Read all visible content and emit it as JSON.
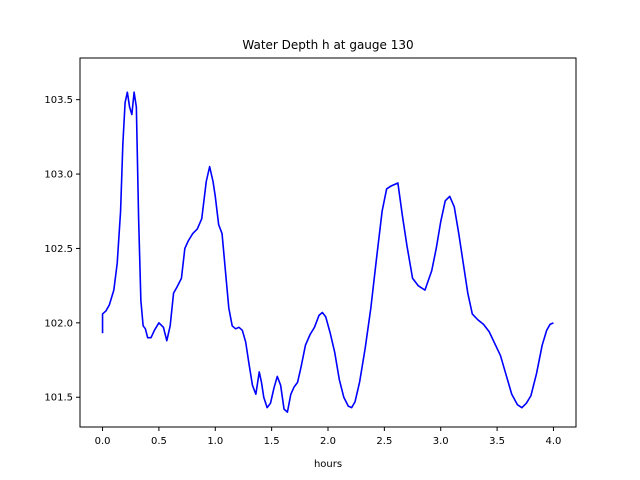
{
  "chart_data": {
    "type": "line",
    "title": "Water Depth h at gauge 130",
    "xlabel": "hours",
    "ylabel": "",
    "xlim": [
      -0.2,
      4.2
    ],
    "ylim": [
      101.3,
      103.78
    ],
    "xticks": [
      0.0,
      0.5,
      1.0,
      1.5,
      2.0,
      2.5,
      3.0,
      3.5,
      4.0
    ],
    "xtick_labels": [
      "0.0",
      "0.5",
      "1.0",
      "1.5",
      "2.0",
      "2.5",
      "3.0",
      "3.5",
      "4.0"
    ],
    "yticks": [
      101.5,
      102.0,
      102.5,
      103.0,
      103.5
    ],
    "ytick_labels": [
      "101.5",
      "102.0",
      "102.5",
      "103.0",
      "103.5"
    ],
    "grid": false,
    "line_color": "#0000ff",
    "series": [
      {
        "x": [
          0.0,
          0.0,
          0.03,
          0.06,
          0.1,
          0.13,
          0.16,
          0.18,
          0.2,
          0.22,
          0.24,
          0.26,
          0.28,
          0.3,
          0.32,
          0.34,
          0.36,
          0.38,
          0.4,
          0.43,
          0.46,
          0.5,
          0.54,
          0.57,
          0.6,
          0.63,
          0.66,
          0.7,
          0.73,
          0.76,
          0.8,
          0.84,
          0.88,
          0.92,
          0.95,
          0.98,
          1.0,
          1.03,
          1.06,
          1.09,
          1.12,
          1.15,
          1.18,
          1.21,
          1.24,
          1.27,
          1.3,
          1.33,
          1.36,
          1.39,
          1.41,
          1.43,
          1.46,
          1.49,
          1.52,
          1.55,
          1.58,
          1.61,
          1.64,
          1.67,
          1.7,
          1.73,
          1.76,
          1.8,
          1.84,
          1.88,
          1.92,
          1.95,
          1.98,
          2.02,
          2.06,
          2.1,
          2.14,
          2.18,
          2.21,
          2.24,
          2.28,
          2.33,
          2.38,
          2.43,
          2.48,
          2.52,
          2.56,
          2.59,
          2.62,
          2.66,
          2.7,
          2.75,
          2.8,
          2.86,
          2.92,
          2.96,
          3.0,
          3.04,
          3.08,
          3.12,
          3.16,
          3.2,
          3.24,
          3.28,
          3.33,
          3.38,
          3.43,
          3.48,
          3.53,
          3.58,
          3.63,
          3.68,
          3.72,
          3.76,
          3.8,
          3.85,
          3.9,
          3.94,
          3.97,
          4.0
        ],
        "y": [
          101.93,
          102.06,
          102.08,
          102.12,
          102.22,
          102.4,
          102.75,
          103.2,
          103.48,
          103.55,
          103.45,
          103.4,
          103.55,
          103.45,
          102.7,
          102.15,
          101.98,
          101.96,
          101.9,
          101.9,
          101.95,
          102.0,
          101.97,
          101.88,
          101.98,
          102.2,
          102.24,
          102.3,
          102.5,
          102.55,
          102.6,
          102.63,
          102.7,
          102.95,
          103.05,
          102.95,
          102.85,
          102.66,
          102.6,
          102.35,
          102.1,
          101.98,
          101.96,
          101.97,
          101.95,
          101.87,
          101.72,
          101.58,
          101.52,
          101.67,
          101.6,
          101.5,
          101.43,
          101.46,
          101.56,
          101.64,
          101.58,
          101.42,
          101.4,
          101.52,
          101.57,
          101.6,
          101.7,
          101.85,
          101.92,
          101.97,
          102.05,
          102.07,
          102.04,
          101.93,
          101.8,
          101.62,
          101.5,
          101.44,
          101.43,
          101.47,
          101.6,
          101.83,
          102.1,
          102.43,
          102.75,
          102.9,
          102.92,
          102.93,
          102.94,
          102.72,
          102.52,
          102.3,
          102.25,
          102.22,
          102.35,
          102.5,
          102.68,
          102.82,
          102.85,
          102.78,
          102.6,
          102.4,
          102.2,
          102.06,
          102.02,
          101.99,
          101.94,
          101.86,
          101.78,
          101.65,
          101.52,
          101.45,
          101.43,
          101.46,
          101.51,
          101.66,
          101.85,
          101.95,
          101.99,
          102.0
        ]
      }
    ]
  }
}
